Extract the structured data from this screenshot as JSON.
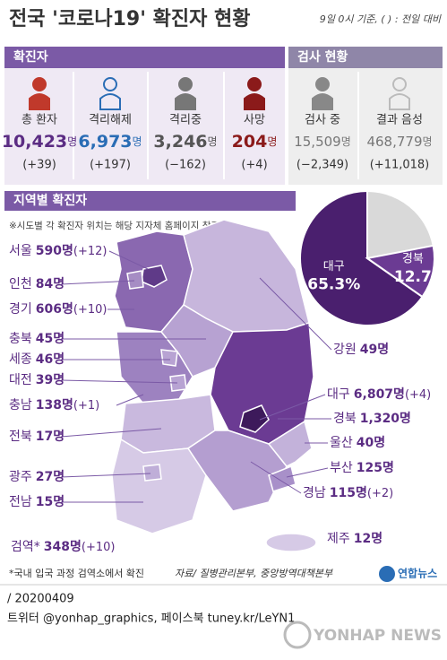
{
  "header": {
    "title": "전국 '코로나19' 확진자 현황",
    "basis": "9일 0시 기준, ( ) : 전일 대비"
  },
  "stats": {
    "confirmed_heading": "확진자",
    "tests_heading": "검사 현황",
    "items": [
      {
        "label": "총 환자",
        "value": "10,423",
        "unit": "명",
        "change": "(+39)"
      },
      {
        "label": "격리해제",
        "value": "6,973",
        "unit": "명",
        "change": "(+197)"
      },
      {
        "label": "격리중",
        "value": "3,246",
        "unit": "명",
        "change": "(−162)"
      },
      {
        "label": "사망",
        "value": "204",
        "unit": "명",
        "change": "(+4)"
      },
      {
        "label": "검사 중",
        "value": "15,509",
        "unit": "명",
        "change": "(−2,349)"
      },
      {
        "label": "결과 음성",
        "value": "468,779",
        "unit": "명",
        "change": "(+11,018)"
      }
    ]
  },
  "regional": {
    "heading": "지역별 확진자",
    "note": "※시도별 각 확진자 위치는 해당 지자체 홈페이지 참조",
    "regions": [
      {
        "name": "서울",
        "count": "590명",
        "change": "(+12)"
      },
      {
        "name": "인천",
        "count": "84명"
      },
      {
        "name": "경기",
        "count": "606명",
        "change": "(+10)"
      },
      {
        "name": "충북",
        "count": "45명"
      },
      {
        "name": "세종",
        "count": "46명"
      },
      {
        "name": "대전",
        "count": "39명"
      },
      {
        "name": "충남",
        "count": "138명",
        "change": "(+1)"
      },
      {
        "name": "전북",
        "count": "17명"
      },
      {
        "name": "광주",
        "count": "27명"
      },
      {
        "name": "전남",
        "count": "15명"
      },
      {
        "name": "검역*",
        "count": "348명",
        "change": "(+10)"
      },
      {
        "name": "강원",
        "count": "49명"
      },
      {
        "name": "대구",
        "count": "6,807명",
        "change": "(+4)"
      },
      {
        "name": "경북",
        "count": "1,320명"
      },
      {
        "name": "울산",
        "count": "40명"
      },
      {
        "name": "부산",
        "count": "125명"
      },
      {
        "name": "경남",
        "count": "115명",
        "change": "(+2)"
      },
      {
        "name": "제주",
        "count": "12명"
      }
    ],
    "pie": {
      "slices": [
        {
          "label": "대구",
          "value": 65.3,
          "value_label": "65.3%",
          "color": "#4a1f6e"
        },
        {
          "label": "경북",
          "value": 12.7,
          "value_label": "12.7",
          "color": "#6b3b93"
        }
      ]
    }
  },
  "footer": {
    "footnote": "*국내 입국 과정 검역소에서 확진",
    "source": "자료/ 질병관리본부, 중앙방역대책본부",
    "logo": "연합뉴스",
    "date": "/ 20200409",
    "social": "트위터 @yonhap_graphics, 페이스북 tuney.kr/LeYN1",
    "watermark": "YONHAP NEWS"
  }
}
